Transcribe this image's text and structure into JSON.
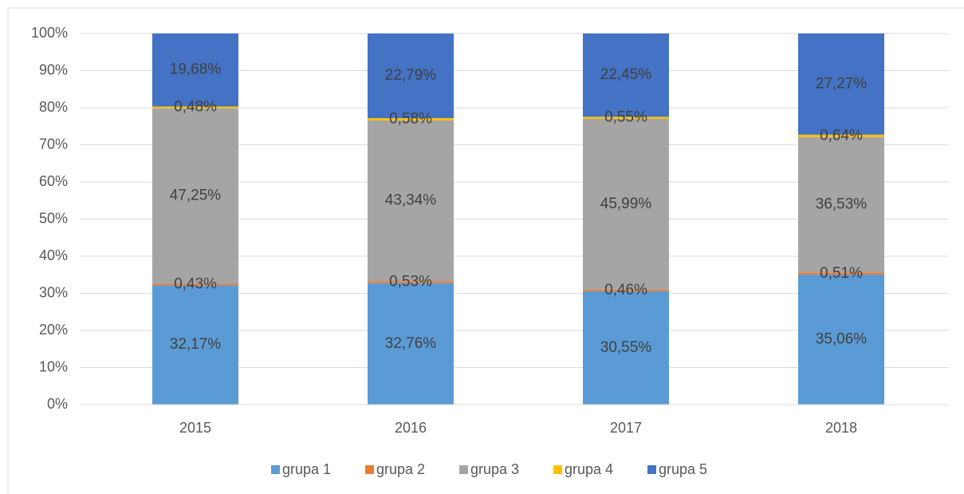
{
  "chart_data": {
    "type": "stacked_bar_100",
    "categories": [
      "2015",
      "2016",
      "2017",
      "2018"
    ],
    "series": [
      {
        "name": "grupa 1",
        "color": "#5b9bd5",
        "values": [
          32.17,
          32.76,
          30.55,
          35.06
        ],
        "value_labels": [
          "32,17%",
          "32,76%",
          "30,55%",
          "35,06%"
        ]
      },
      {
        "name": "grupa 2",
        "color": "#ed7d31",
        "values": [
          0.43,
          0.53,
          0.46,
          0.51
        ],
        "value_labels": [
          "0,43%",
          "0,53%",
          "0,46%",
          "0,51%"
        ]
      },
      {
        "name": "grupa 3",
        "color": "#a5a5a5",
        "values": [
          47.25,
          43.34,
          45.99,
          36.53
        ],
        "value_labels": [
          "47,25%",
          "43,34%",
          "45,99%",
          "36,53%"
        ]
      },
      {
        "name": "grupa 4",
        "color": "#ffc000",
        "values": [
          0.48,
          0.58,
          0.55,
          0.64
        ],
        "value_labels": [
          "0,48%",
          "0,58%",
          "0,55%",
          "0,64%"
        ]
      },
      {
        "name": "grupa 5",
        "color": "#4472c4",
        "values": [
          19.68,
          22.79,
          22.45,
          27.27
        ],
        "value_labels": [
          "19,68%",
          "22,79%",
          "22,45%",
          "27,27%"
        ]
      }
    ],
    "ylim": [
      0,
      100
    ],
    "yticks": [
      {
        "value": 0,
        "label": "0%"
      },
      {
        "value": 10,
        "label": "10%"
      },
      {
        "value": 20,
        "label": "20%"
      },
      {
        "value": 30,
        "label": "30%"
      },
      {
        "value": 40,
        "label": "40%"
      },
      {
        "value": 50,
        "label": "50%"
      },
      {
        "value": 60,
        "label": "60%"
      },
      {
        "value": 70,
        "label": "70%"
      },
      {
        "value": 80,
        "label": "80%"
      },
      {
        "value": 90,
        "label": "90%"
      },
      {
        "value": 100,
        "label": "100%"
      }
    ],
    "grid": true,
    "legend": "bottom"
  }
}
